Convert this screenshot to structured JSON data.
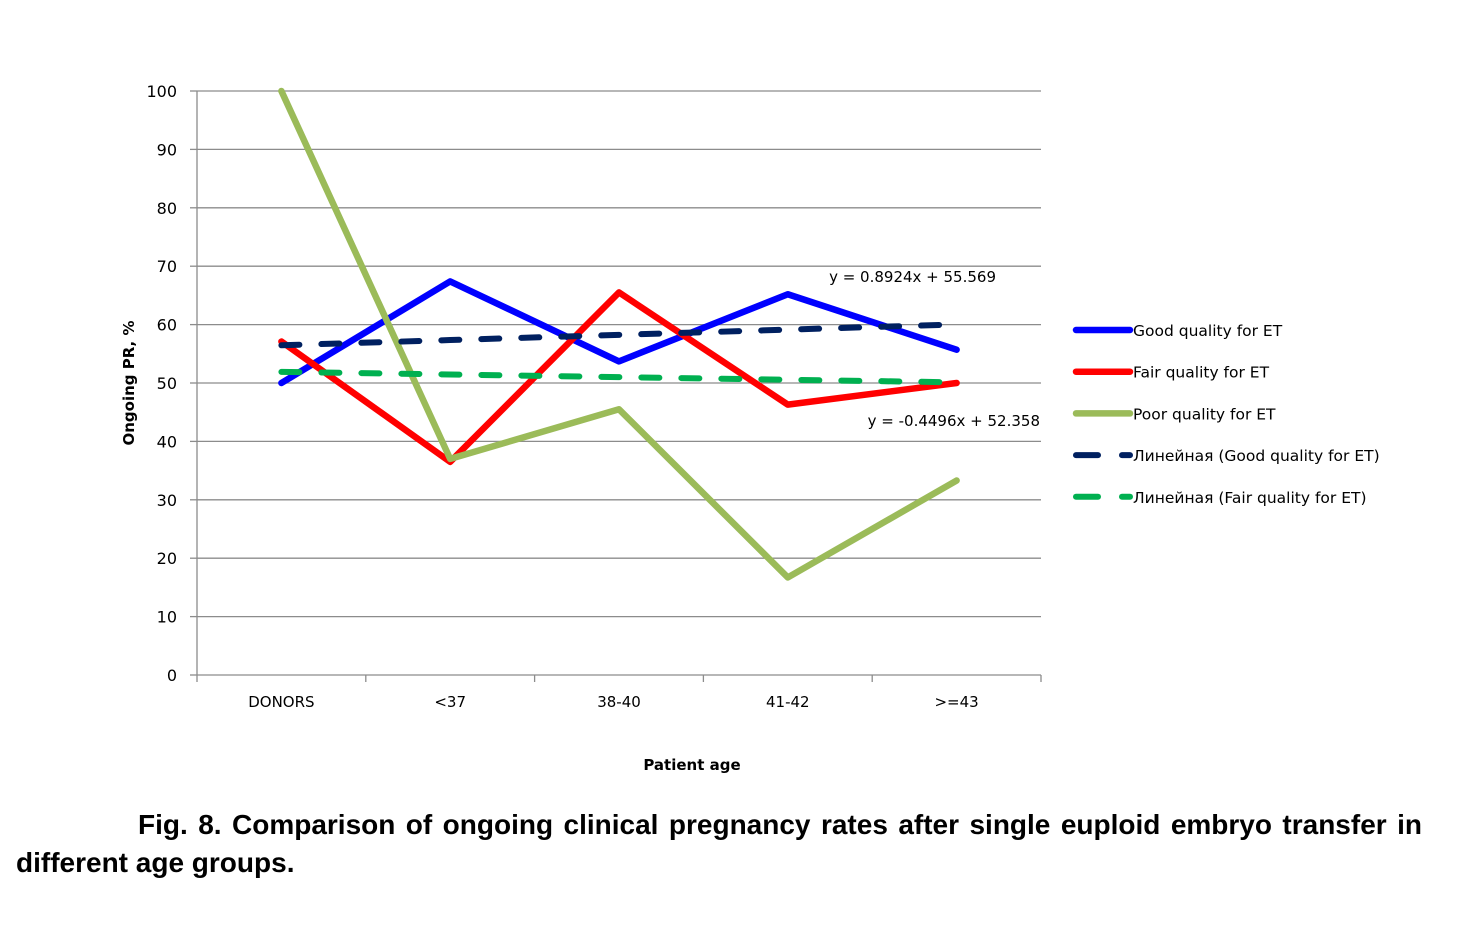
{
  "chart_data": {
    "type": "line",
    "title": "",
    "xlabel": "Patient age",
    "ylabel": "Ongoing PR, %",
    "ylim": [
      0,
      100
    ],
    "yticks": [
      0,
      10,
      20,
      30,
      40,
      50,
      60,
      70,
      80,
      90,
      100
    ],
    "grid": true,
    "legend_position": "right",
    "categories": [
      "DONORS",
      "<37",
      "38-40",
      "41-42",
      ">=43"
    ],
    "series": [
      {
        "name": "Good quality for ET",
        "color": "#0000ff",
        "style": "solid",
        "values": [
          50.0,
          67.4,
          53.7,
          65.2,
          55.7
        ]
      },
      {
        "name": "Fair quality for ET",
        "color": "#ff0000",
        "style": "solid",
        "values": [
          57.1,
          36.5,
          65.5,
          46.3,
          50.0
        ]
      },
      {
        "name": "Poor quality for ET",
        "color": "#9bbb59",
        "style": "solid",
        "values": [
          100.0,
          37.0,
          45.5,
          16.7,
          33.3
        ]
      },
      {
        "name": "Линейная (Good quality for ET)",
        "color": "#002060",
        "style": "dashed",
        "trend": {
          "slope": 0.8924,
          "intercept": 55.569
        }
      },
      {
        "name": "Линейная (Fair quality for ET)",
        "color": "#00b050",
        "style": "dashed",
        "trend": {
          "slope": -0.4496,
          "intercept": 52.358
        }
      }
    ],
    "annotations": [
      {
        "text": "y = 0.8924x + 55.569",
        "series": "Линейная (Good quality for ET)"
      },
      {
        "text": "y = -0.4496x + 52.358",
        "series": "Линейная (Fair quality for ET)"
      }
    ]
  },
  "caption": {
    "text": "Fig. 8. Comparison of ongoing clinical pregnancy rates after single euploid embryo transfer in different age groups."
  },
  "colors": {
    "grid": "#8c8c8c",
    "axis": "#8c8c8c"
  }
}
